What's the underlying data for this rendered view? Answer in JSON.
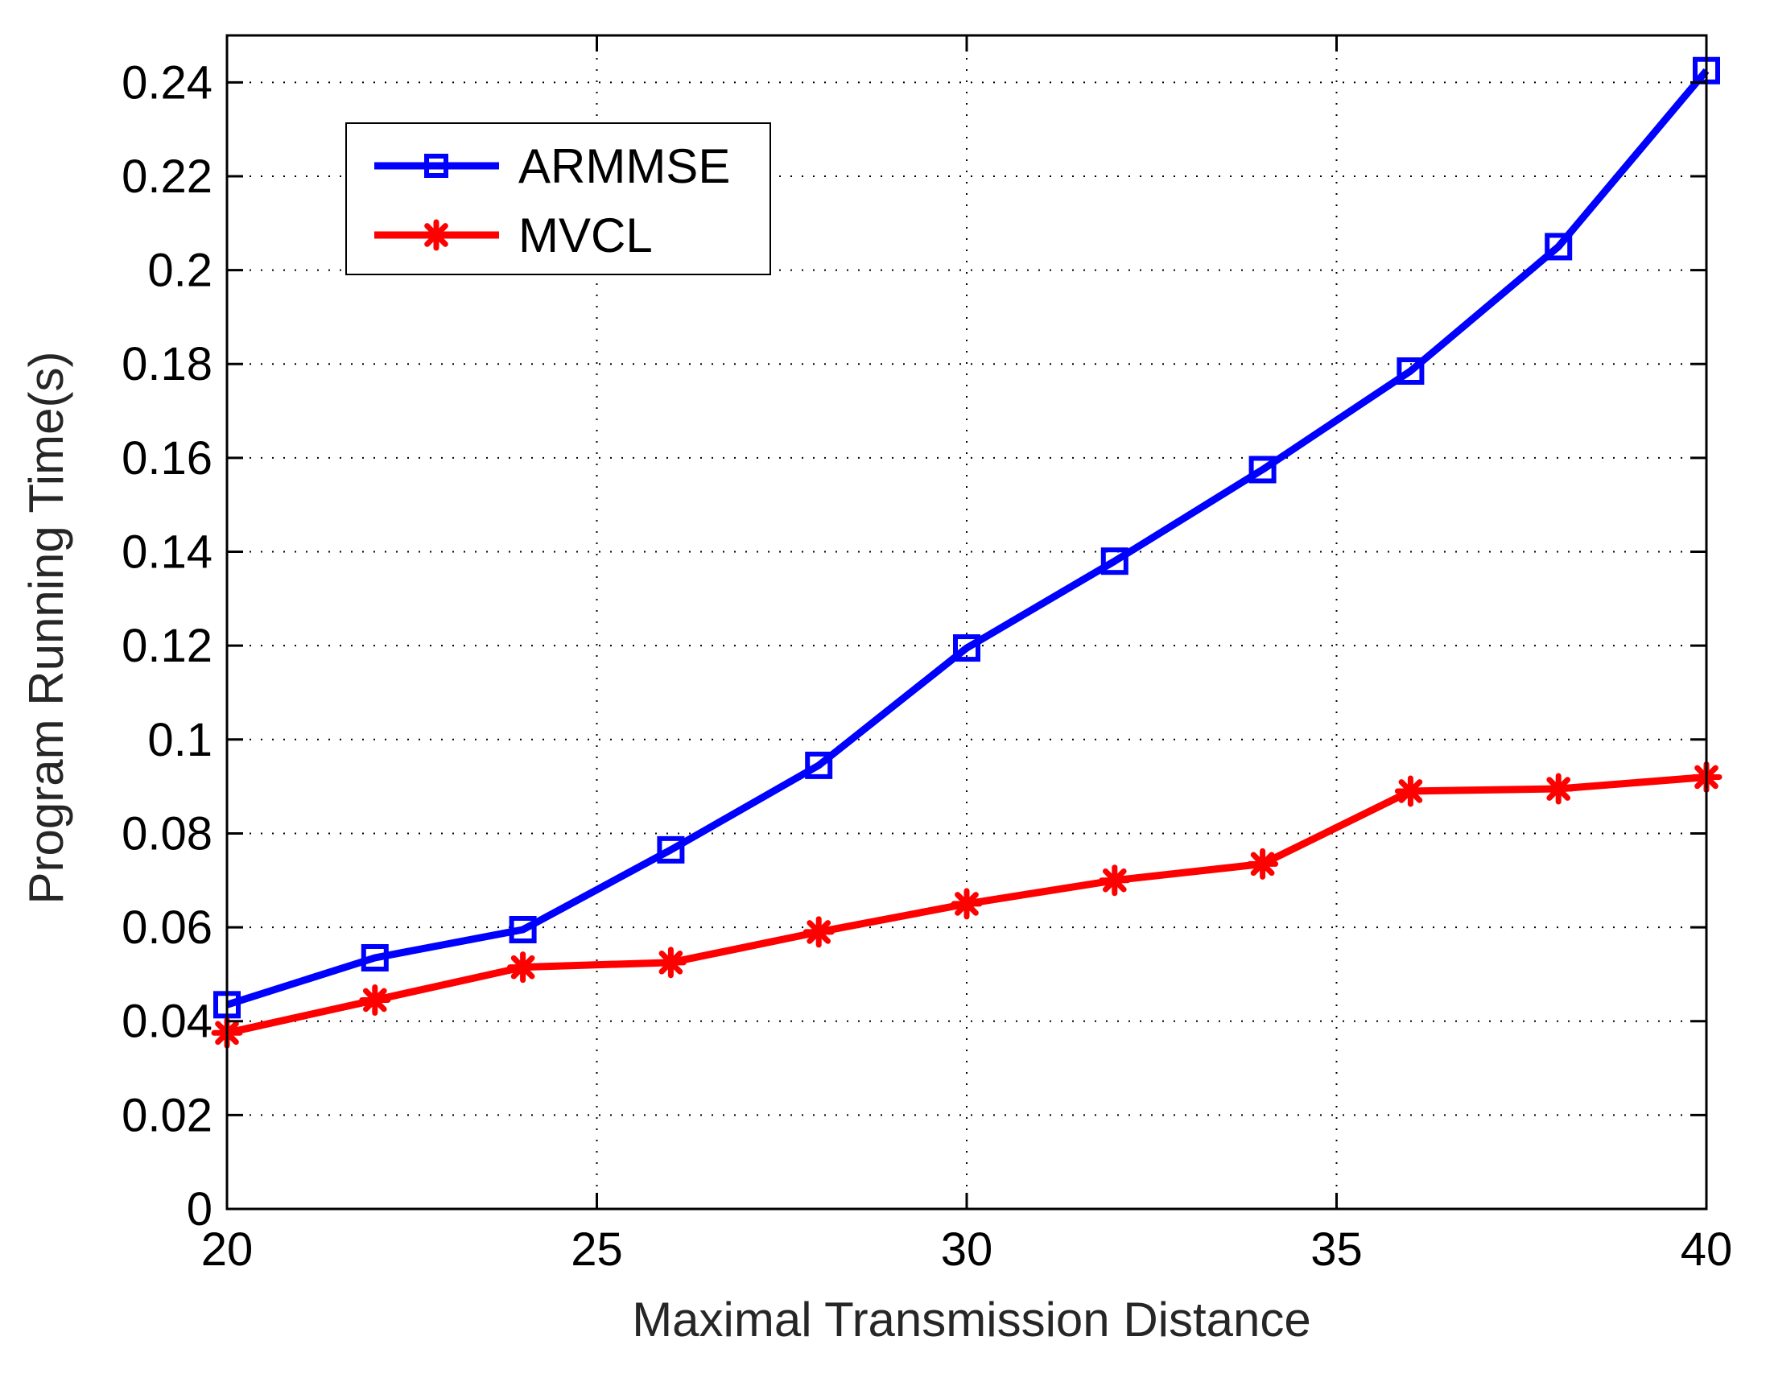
{
  "colors": {
    "armmse": "#0000ff",
    "mvcl": "#ff0000",
    "axis": "#000000",
    "grid": "#000000",
    "label_text": "#262626"
  },
  "chart_data": {
    "type": "line",
    "title": "",
    "xlabel": "Maximal Transmission Distance",
    "ylabel": "Program Running Time(s)",
    "xlim": [
      20,
      40
    ],
    "ylim": [
      0,
      0.25
    ],
    "grid": true,
    "legend_position": "top-left",
    "x_ticks": [
      20,
      25,
      30,
      35,
      40
    ],
    "x_tick_labels": [
      "20",
      "25",
      "30",
      "35",
      "40"
    ],
    "y_ticks": [
      0,
      0.02,
      0.04,
      0.06,
      0.08,
      0.1,
      0.12,
      0.14,
      0.16,
      0.18,
      0.2,
      0.22,
      0.24
    ],
    "y_tick_labels": [
      "0",
      "0.02",
      "0.04",
      "0.06",
      "0.08",
      "0.1",
      "0.12",
      "0.14",
      "0.16",
      "0.18",
      "0.2",
      "0.22",
      "0.24"
    ],
    "x": [
      20,
      22,
      24,
      26,
      28,
      30,
      32,
      34,
      36,
      38,
      40
    ],
    "series": [
      {
        "name": "ARMMSE",
        "color": "#0000ff",
        "marker": "square",
        "values": [
          0.0435,
          0.0535,
          0.0595,
          0.0765,
          0.0945,
          0.1195,
          0.138,
          0.1575,
          0.1785,
          0.205,
          0.2425
        ]
      },
      {
        "name": "MVCL",
        "color": "#ff0000",
        "marker": "asterisk",
        "values": [
          0.0375,
          0.0445,
          0.0515,
          0.0525,
          0.059,
          0.065,
          0.07,
          0.0735,
          0.089,
          0.0895,
          0.092
        ]
      }
    ]
  }
}
